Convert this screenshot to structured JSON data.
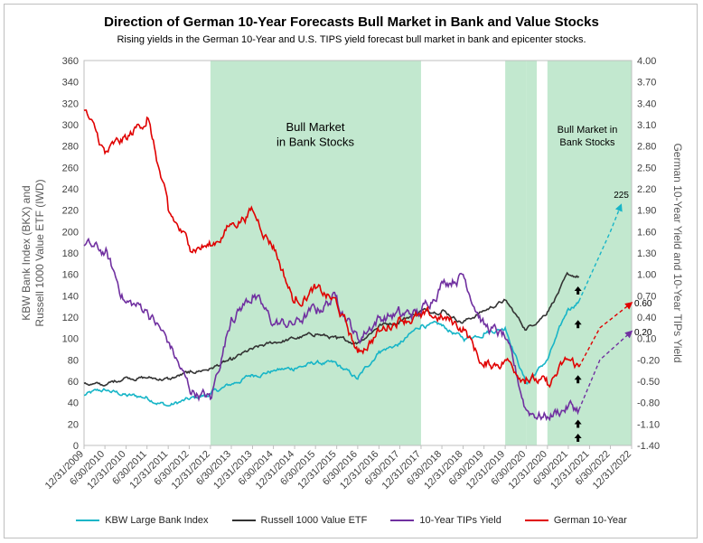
{
  "chart_data": {
    "type": "line",
    "title": "Direction of German 10-Year Forecasts Bull Market in Bank and Value Stocks",
    "subtitle": "Rising yields in the German 10-Year and U.S. TIPS yield forecast bull market in bank and epicenter stocks.",
    "ylabel_left": "KBW Bank Index (BKX) and Russell 1000 Value ETF (IWD)",
    "ylabel_right": "German 10-Year Yield and 10-Year TIPs Yield",
    "ylim_left": [
      0,
      360
    ],
    "ylim_right": [
      -1.4,
      4.0
    ],
    "yticks_left": [
      "0",
      "20",
      "40",
      "60",
      "80",
      "100",
      "120",
      "140",
      "160",
      "180",
      "200",
      "220",
      "240",
      "260",
      "280",
      "300",
      "320",
      "340",
      "360"
    ],
    "yticks_right": [
      "-1.40",
      "-1.10",
      "-0.80",
      "-0.50",
      "-0.20",
      "0.10",
      "0.40",
      "0.70",
      "1.00",
      "1.30",
      "1.60",
      "1.90",
      "2.20",
      "2.50",
      "2.80",
      "3.10",
      "3.40",
      "3.70",
      "4.00"
    ],
    "xticks": [
      "12/31/2009",
      "6/30/2010",
      "12/31/2010",
      "6/30/2011",
      "12/31/2011",
      "6/30/2012",
      "12/31/2012",
      "6/30/2013",
      "12/31/2013",
      "6/30/2014",
      "12/31/2014",
      "6/30/2015",
      "12/31/2015",
      "6/30/2016",
      "12/31/2016",
      "6/30/2017",
      "12/31/2017",
      "6/30/2018",
      "12/31/2018",
      "6/30/2019",
      "12/31/2019",
      "6/30/2020",
      "12/31/2020",
      "6/30/2021",
      "12/31/2021",
      "6/30/2022",
      "12/31/2022"
    ],
    "shaded_regions": [
      {
        "start": "12/31/2012",
        "end": "12/31/2017"
      },
      {
        "start": "12/31/2019",
        "end": "6/30/2020"
      },
      {
        "start": "6/30/2020",
        "end": "9/30/2020"
      },
      {
        "start": "12/31/2020",
        "end": "12/31/2022"
      }
    ],
    "annotations": [
      {
        "text": "Bull Market\nin Bank Stocks"
      },
      {
        "text": "Bull Market in\nBank Stocks"
      },
      {
        "text": "225"
      },
      {
        "text": "0.60"
      },
      {
        "text": "0.20"
      }
    ],
    "legend_position": "bottom",
    "series": [
      {
        "name": "KBW Large Bank Index",
        "color": "#17b5c7",
        "axis": "left",
        "x": [
          "12/31/2009",
          "6/30/2010",
          "12/31/2010",
          "6/30/2011",
          "12/31/2011",
          "6/30/2012",
          "12/31/2012",
          "6/30/2013",
          "12/31/2013",
          "6/30/2014",
          "12/31/2014",
          "6/30/2015",
          "12/31/2015",
          "6/30/2016",
          "12/31/2016",
          "6/30/2017",
          "12/31/2017",
          "6/30/2018",
          "12/31/2018",
          "6/30/2019",
          "12/31/2019",
          "6/30/2020",
          "12/31/2020",
          "6/30/2021",
          "9/30/2021"
        ],
        "values": [
          47,
          52,
          47,
          45,
          37,
          43,
          48,
          57,
          66,
          70,
          72,
          77,
          76,
          62,
          88,
          95,
          112,
          112,
          100,
          105,
          110,
          58,
          80,
          128,
          135
        ]
      },
      {
        "name": "Russell 1000 Value ETF",
        "color": "#333333",
        "axis": "left",
        "x": [
          "12/31/2009",
          "6/30/2010",
          "12/31/2010",
          "6/30/2011",
          "12/31/2011",
          "6/30/2012",
          "12/31/2012",
          "6/30/2013",
          "12/31/2013",
          "6/30/2014",
          "12/31/2014",
          "6/30/2015",
          "12/31/2015",
          "6/30/2016",
          "12/31/2016",
          "6/30/2017",
          "12/31/2017",
          "6/30/2018",
          "12/31/2018",
          "6/30/2019",
          "12/31/2019",
          "6/30/2020",
          "12/31/2020",
          "6/30/2021",
          "9/30/2021"
        ],
        "values": [
          58,
          56,
          64,
          63,
          62,
          68,
          72,
          80,
          90,
          96,
          100,
          104,
          100,
          96,
          112,
          116,
          126,
          126,
          115,
          126,
          136,
          108,
          125,
          160,
          158
        ]
      },
      {
        "name": "10-Year TIPs Yield",
        "color": "#7030a0",
        "axis": "right",
        "x": [
          "12/31/2009",
          "6/30/2010",
          "12/31/2010",
          "6/30/2011",
          "12/31/2011",
          "6/30/2012",
          "12/31/2012",
          "6/30/2013",
          "12/31/2013",
          "6/30/2014",
          "12/31/2014",
          "6/30/2015",
          "12/31/2015",
          "6/30/2016",
          "12/31/2016",
          "6/30/2017",
          "12/31/2017",
          "6/30/2018",
          "12/31/2018",
          "6/30/2019",
          "12/31/2019",
          "6/30/2020",
          "12/31/2020",
          "6/30/2021",
          "9/30/2021"
        ],
        "values": [
          1.4,
          1.3,
          0.6,
          0.5,
          0.05,
          -0.6,
          -0.75,
          0.4,
          0.7,
          0.3,
          0.3,
          0.5,
          0.7,
          0.1,
          0.4,
          0.45,
          0.45,
          0.9,
          1.0,
          0.3,
          0.1,
          -0.9,
          -1.0,
          -0.85,
          -0.9
        ]
      },
      {
        "name": "German 10-Year",
        "color": "#e00000",
        "axis": "right",
        "x": [
          "12/31/2009",
          "6/30/2010",
          "12/31/2010",
          "6/30/2011",
          "12/31/2011",
          "6/30/2012",
          "12/31/2012",
          "6/30/2013",
          "12/31/2013",
          "6/30/2014",
          "12/31/2014",
          "6/30/2015",
          "12/31/2015",
          "6/30/2016",
          "12/31/2016",
          "6/30/2017",
          "12/31/2017",
          "6/30/2018",
          "12/31/2018",
          "6/30/2019",
          "12/31/2019",
          "6/30/2020",
          "12/31/2020",
          "6/30/2021",
          "9/30/2021"
        ],
        "values": [
          3.3,
          2.7,
          2.9,
          3.2,
          1.9,
          1.4,
          1.4,
          1.7,
          1.9,
          1.4,
          0.6,
          0.8,
          0.6,
          -0.1,
          0.2,
          0.4,
          0.4,
          0.4,
          0.25,
          -0.3,
          -0.2,
          -0.45,
          -0.55,
          -0.2,
          -0.3
        ]
      }
    ],
    "forecasts": [
      {
        "series": "KBW Large Bank Index",
        "color": "#17b5c7",
        "x": [
          "9/30/2021",
          "6/30/2022",
          "9/30/2022"
        ],
        "values": [
          135,
          200,
          225
        ]
      },
      {
        "series": "German 10-Year",
        "color": "#e00000",
        "x": [
          "9/30/2021",
          "3/31/2022",
          "12/31/2022"
        ],
        "values": [
          -0.3,
          0.25,
          0.6
        ]
      },
      {
        "series": "10-Year TIPs Yield",
        "color": "#7030a0",
        "x": [
          "9/30/2021",
          "3/31/2022",
          "12/31/2022"
        ],
        "values": [
          -0.9,
          -0.2,
          0.2
        ]
      }
    ]
  }
}
